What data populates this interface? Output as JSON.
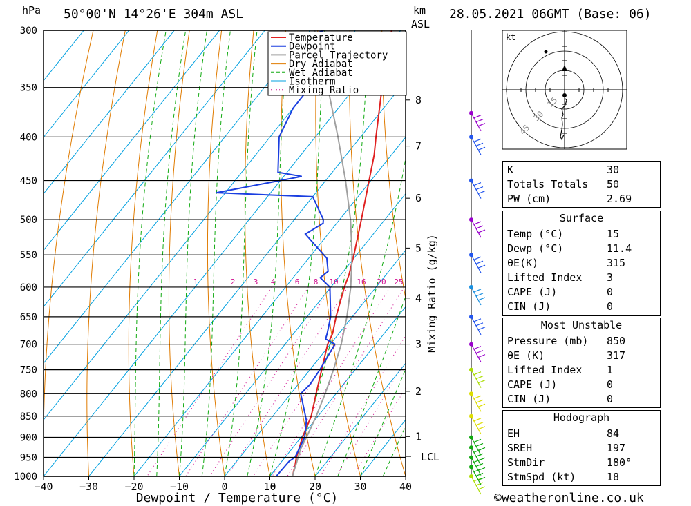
{
  "header": {
    "unit_hpa": "hPa",
    "location": "50°00'N  14°26'E  304m  ASL",
    "unit_km": "km",
    "unit_asl": "ASL",
    "datetime": "28.05.2021  06GMT  (Base: 06)"
  },
  "axes": {
    "xlabel": "Dewpoint / Temperature (°C)",
    "mixing_label": "Mixing Ratio (g/kg)",
    "lcl_label": "LCL",
    "hodo_unit": "kt",
    "hodo_rings": [
      "15",
      "30",
      "45"
    ]
  },
  "legend": [
    {
      "name": "Temperature",
      "color": "#e02020"
    },
    {
      "name": "Dewpoint",
      "color": "#1a3ee0"
    },
    {
      "name": "Parcel Trajectory",
      "color": "#a0a0a0"
    },
    {
      "name": "Dry Adiabat",
      "color": "#e07b00"
    },
    {
      "name": "Wet Adiabat",
      "color": "#11aa11"
    },
    {
      "name": "Isotherm",
      "color": "#00a0e0"
    },
    {
      "name": "Mixing Ratio",
      "color": "#d01090"
    }
  ],
  "indices": {
    "general": [
      [
        "K",
        "30"
      ],
      [
        "Totals Totals",
        "50"
      ],
      [
        "PW (cm)",
        "2.69"
      ]
    ],
    "surface_title": "Surface",
    "surface": [
      [
        "Temp (°C)",
        "15"
      ],
      [
        "Dewp (°C)",
        "11.4"
      ],
      [
        "θE(K)",
        "315"
      ],
      [
        "Lifted Index",
        "3"
      ],
      [
        "CAPE (J)",
        "0"
      ],
      [
        "CIN (J)",
        "0"
      ]
    ],
    "mu_title": "Most Unstable",
    "mu": [
      [
        "Pressure (mb)",
        "850"
      ],
      [
        "θE (K)",
        "317"
      ],
      [
        "Lifted Index",
        "1"
      ],
      [
        "CAPE (J)",
        "0"
      ],
      [
        "CIN (J)",
        "0"
      ]
    ],
    "hodo_title": "Hodograph",
    "hodo": [
      [
        "EH",
        "84"
      ],
      [
        "SREH",
        "197"
      ],
      [
        "StmDir",
        "180°"
      ],
      [
        "StmSpd (kt)",
        "18"
      ]
    ]
  },
  "credit": "©weatheronline.co.uk",
  "chart_data": {
    "type": "line",
    "title": "50°00'N 14°26'E 304m ASL",
    "xlabel": "Dewpoint / Temperature (°C)",
    "ylabel": "hPa",
    "xlim": [
      -40,
      40
    ],
    "ylim": [
      1000,
      300
    ],
    "pressure_ticks": [
      300,
      350,
      400,
      450,
      500,
      550,
      600,
      650,
      700,
      750,
      800,
      850,
      900,
      950,
      1000
    ],
    "temperature_ticks": [
      -40,
      -30,
      -20,
      -10,
      0,
      10,
      20,
      30,
      40
    ],
    "km_ticks": [
      {
        "label": "8",
        "p": 362
      },
      {
        "label": "7",
        "p": 410
      },
      {
        "label": "6",
        "p": 472
      },
      {
        "label": "5",
        "p": 540
      },
      {
        "label": "4",
        "p": 618
      },
      {
        "label": "3",
        "p": 700
      },
      {
        "label": "2",
        "p": 795
      },
      {
        "label": "1",
        "p": 898
      }
    ],
    "lcl_pressure": 930,
    "mixing_ratio_labels": [
      "1",
      "2",
      "3",
      "4",
      "6",
      "8",
      "10",
      "16",
      "20",
      "25"
    ],
    "series": [
      {
        "name": "Temperature",
        "color": "#e02020",
        "points": [
          [
            1000,
            15
          ],
          [
            970,
            13.6
          ],
          [
            950,
            12.5
          ],
          [
            900,
            10.3
          ],
          [
            850,
            8.5
          ],
          [
            800,
            5.6
          ],
          [
            750,
            2.6
          ],
          [
            700,
            -0.6
          ],
          [
            680,
            -1.4
          ],
          [
            650,
            -3.6
          ],
          [
            600,
            -7.0
          ],
          [
            580,
            -8.2
          ],
          [
            550,
            -10.6
          ],
          [
            500,
            -15.2
          ],
          [
            450,
            -20.4
          ],
          [
            420,
            -23.8
          ],
          [
            400,
            -26.6
          ],
          [
            350,
            -34.0
          ],
          [
            320,
            -38.6
          ],
          [
            300,
            -42.0
          ]
        ]
      },
      {
        "name": "Dewpoint",
        "color": "#1a3ee0",
        "points": [
          [
            1000,
            11.4
          ],
          [
            960,
            11.6
          ],
          [
            950,
            12.2
          ],
          [
            900,
            10.8
          ],
          [
            860,
            8.2
          ],
          [
            800,
            2.2
          ],
          [
            780,
            2.6
          ],
          [
            750,
            2.2
          ],
          [
            700,
            1.0
          ],
          [
            690,
            -2.0
          ],
          [
            680,
            -2.6
          ],
          [
            650,
            -4.8
          ],
          [
            600,
            -10.2
          ],
          [
            585,
            -14.0
          ],
          [
            575,
            -13.4
          ],
          [
            555,
            -16.0
          ],
          [
            520,
            -25.0
          ],
          [
            505,
            -23.0
          ],
          [
            500,
            -23.6
          ],
          [
            470,
            -30.0
          ],
          [
            465,
            -52.0
          ],
          [
            445,
            -36.0
          ],
          [
            440,
            -42.0
          ],
          [
            400,
            -48.0
          ],
          [
            370,
            -50.0
          ],
          [
            350,
            -50.0
          ],
          [
            320,
            -54.0
          ],
          [
            310,
            -62.0
          ],
          [
            300,
            -57.0
          ]
        ]
      },
      {
        "name": "Parcel Trajectory",
        "color": "#a0a0a0",
        "points": [
          [
            1000,
            15
          ],
          [
            930,
            12.0
          ],
          [
            900,
            11.2
          ],
          [
            850,
            9.6
          ],
          [
            800,
            7.6
          ],
          [
            750,
            5.2
          ],
          [
            700,
            2.4
          ],
          [
            650,
            -1.2
          ],
          [
            600,
            -5.6
          ],
          [
            550,
            -11.0
          ],
          [
            500,
            -17.6
          ],
          [
            450,
            -25.6
          ],
          [
            400,
            -35.0
          ],
          [
            350,
            -46.0
          ],
          [
            300,
            -59.0
          ]
        ]
      }
    ],
    "wind_barbs": [
      {
        "p": 1000,
        "color": "#aadd00"
      },
      {
        "p": 975,
        "color": "#11aa11"
      },
      {
        "p": 950,
        "color": "#11aa11"
      },
      {
        "p": 925,
        "color": "#11aa11"
      },
      {
        "p": 900,
        "color": "#11aa11"
      },
      {
        "p": 850,
        "color": "#dddd00"
      },
      {
        "p": 800,
        "color": "#dddd00"
      },
      {
        "p": 750,
        "color": "#aadd00"
      },
      {
        "p": 700,
        "color": "#9900cc"
      },
      {
        "p": 650,
        "color": "#2255ee"
      },
      {
        "p": 600,
        "color": "#1a90e0"
      },
      {
        "p": 550,
        "color": "#2255ee"
      },
      {
        "p": 500,
        "color": "#9900cc"
      },
      {
        "p": 450,
        "color": "#2255ee"
      },
      {
        "p": 400,
        "color": "#2255ee"
      },
      {
        "p": 375,
        "color": "#9900cc"
      }
    ],
    "hodograph": {
      "points": [
        [
          0,
          -2
        ],
        [
          3,
          -5
        ],
        [
          1,
          -12
        ],
        [
          -4,
          -18
        ],
        [
          -3,
          -22
        ],
        [
          -2,
          -26
        ],
        [
          -4,
          -30
        ],
        [
          -3,
          -40
        ],
        [
          -4,
          -48
        ],
        [
          -6,
          -58
        ],
        [
          -4,
          -62
        ],
        [
          -1,
          -55
        ]
      ]
    }
  }
}
